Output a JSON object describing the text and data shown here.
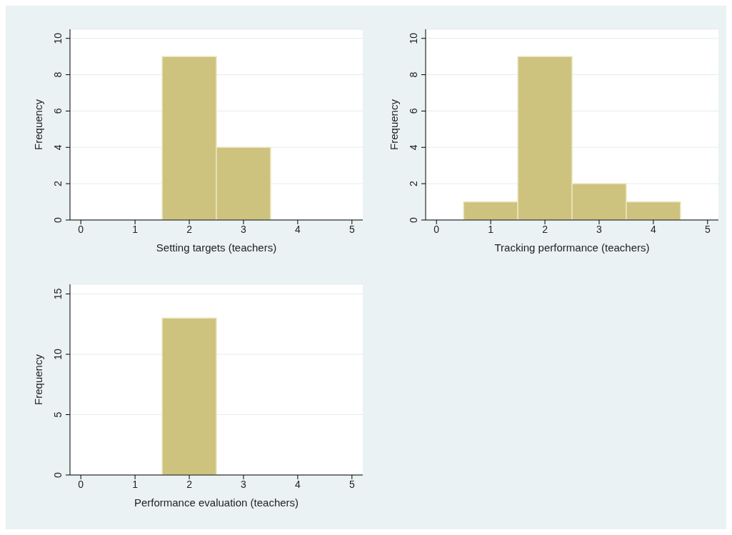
{
  "chart_data": [
    {
      "type": "histogram",
      "xlabel": "Setting targets (teachers)",
      "ylabel": "Frequency",
      "bins": [
        1.5,
        2.5,
        3.5
      ],
      "values": [
        9,
        4
      ],
      "color": "#cdc37e",
      "xlim": [
        -0.2,
        5.2
      ],
      "xticks": [
        0,
        1,
        2,
        3,
        4,
        5
      ],
      "ylim": [
        0,
        10.5
      ],
      "yticks": [
        0,
        2,
        4,
        6,
        8,
        10
      ],
      "grid": "y"
    },
    {
      "type": "histogram",
      "xlabel": "Tracking performance (teachers)",
      "ylabel": "Frequency",
      "bins": [
        0.5,
        1.5,
        2.5,
        3.5,
        4.5
      ],
      "values": [
        1,
        9,
        2,
        1
      ],
      "color": "#cdc37e",
      "xlim": [
        -0.2,
        5.2
      ],
      "xticks": [
        0,
        1,
        2,
        3,
        4,
        5
      ],
      "ylim": [
        0,
        10.5
      ],
      "yticks": [
        0,
        2,
        4,
        6,
        8,
        10
      ],
      "grid": "y"
    },
    {
      "type": "histogram",
      "xlabel": "Performance evaluation (teachers)",
      "ylabel": "Frequency",
      "bins": [
        1.5,
        2.5
      ],
      "values": [
        13
      ],
      "color": "#cdc37e",
      "xlim": [
        -0.2,
        5.2
      ],
      "xticks": [
        0,
        1,
        2,
        3,
        4,
        5
      ],
      "ylim": [
        0,
        15.8
      ],
      "yticks": [
        0,
        5,
        10,
        15
      ],
      "grid": "y"
    }
  ]
}
